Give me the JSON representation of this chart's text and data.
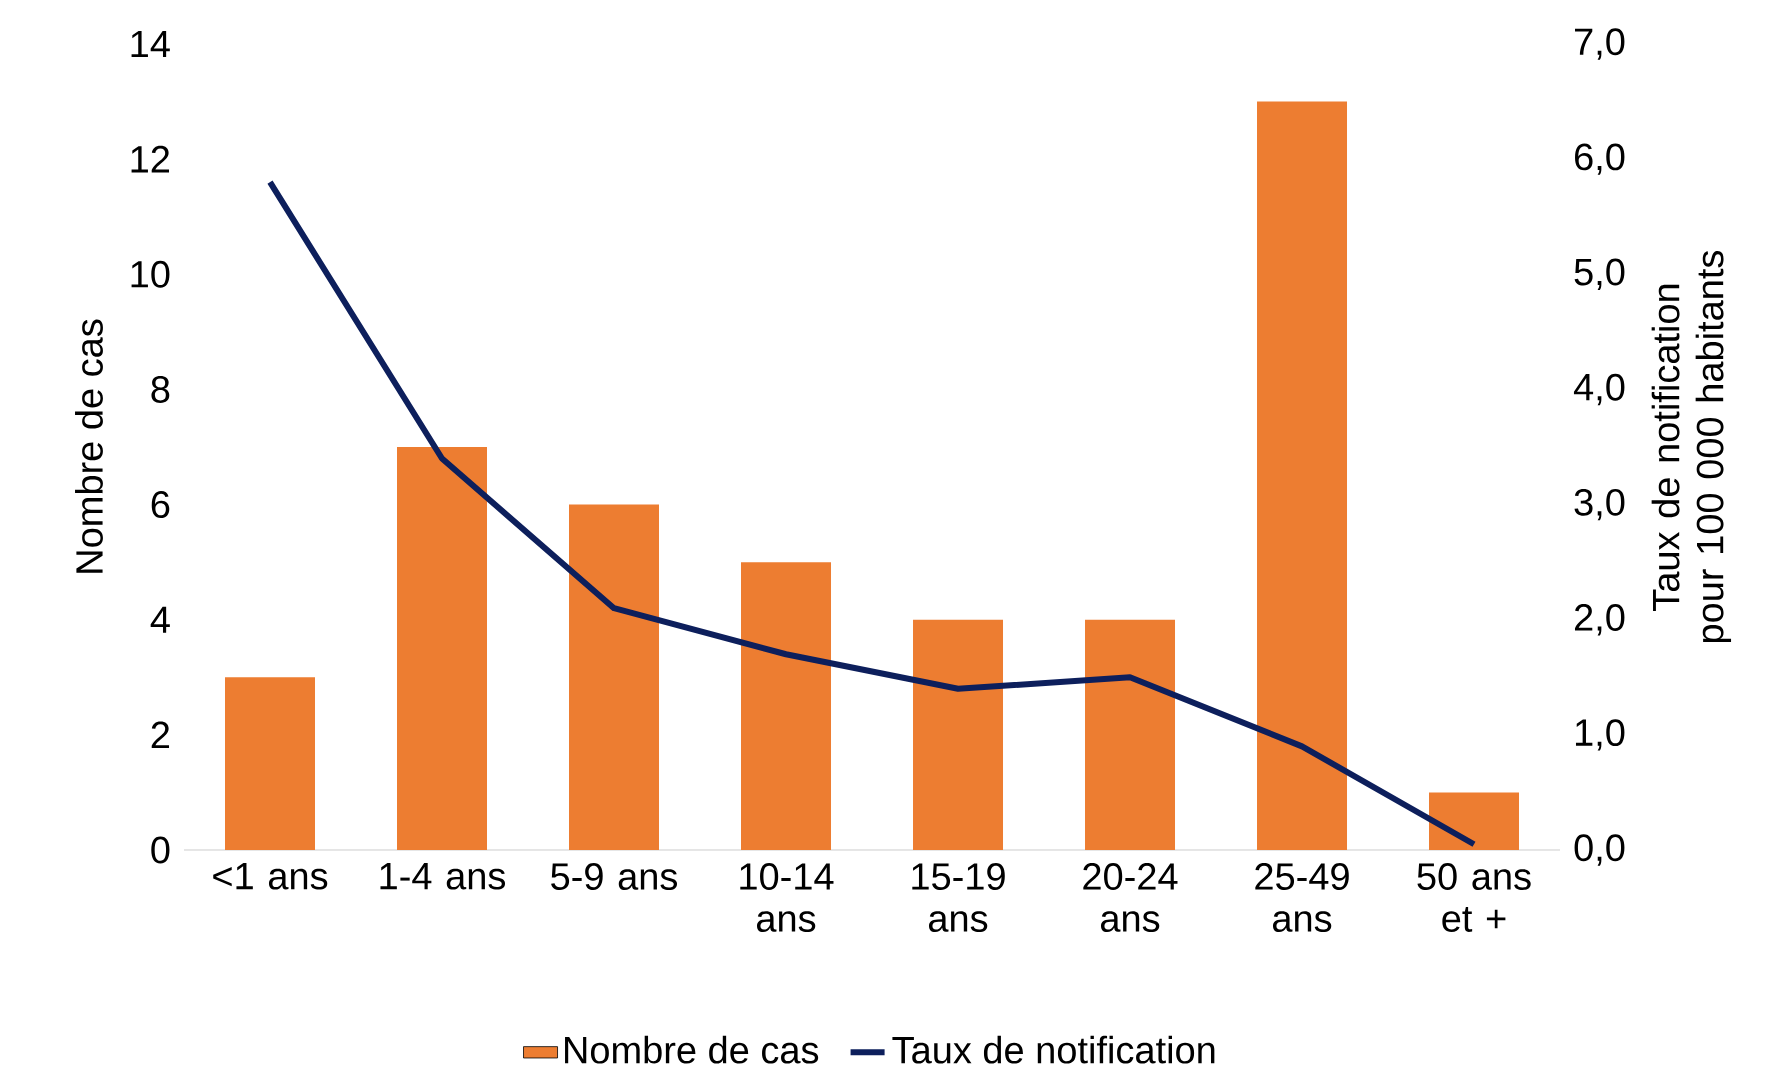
{
  "chart_data": {
    "type": "bar",
    "categories": [
      "<1 ans",
      "1-4 ans",
      "5-9 ans",
      "10-14 ans",
      "15-19 ans",
      "20-24 ans",
      "25-49 ans",
      "50 ans et +"
    ],
    "series": [
      {
        "name": "Nombre de cas",
        "color": "#ed7d31",
        "values": [
          3,
          7,
          6,
          5,
          4,
          4,
          13,
          1
        ]
      },
      {
        "name": "Taux de notification",
        "type": "line",
        "axis": "y2",
        "color": "#0d1f5c",
        "values": [
          5.8,
          3.4,
          2.1,
          1.7,
          1.4,
          1.5,
          0.9,
          0.05
        ]
      }
    ],
    "ylabel": "Nombre de cas",
    "y2label": "Taux de notification pour 100 000 habitants",
    "ylim": [
      0,
      14
    ],
    "yticks": [
      0,
      2,
      4,
      6,
      8,
      10,
      12,
      14
    ],
    "y2lim": [
      0,
      7
    ],
    "y2ticks": [
      {
        "value": 0,
        "label": "0,0"
      },
      {
        "value": 1,
        "label": "1,0"
      },
      {
        "value": 2,
        "label": "2,0"
      },
      {
        "value": 3,
        "label": "3,0"
      },
      {
        "value": 4,
        "label": "4,0"
      },
      {
        "value": 5,
        "label": "5,0"
      },
      {
        "value": 6,
        "label": "6,0"
      },
      {
        "value": 7,
        "label": "7,0"
      }
    ],
    "legend": "bottom"
  }
}
